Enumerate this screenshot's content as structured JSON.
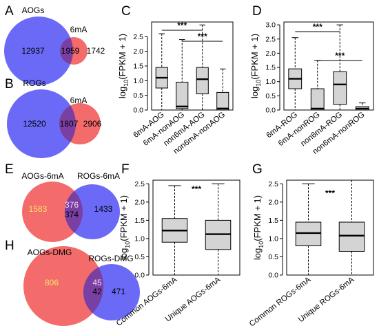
{
  "panel_labels": {
    "A": "A",
    "B": "B",
    "C": "C",
    "D": "D",
    "E": "E",
    "F": "F",
    "G": "G",
    "H": "H"
  },
  "colors": {
    "blue": "#6a6af7",
    "red": "#f36b6b",
    "overlap": "#7a3fa2",
    "box_fill": "#d4d4d4"
  },
  "venn": {
    "A": {
      "left_title": "AOGs",
      "right_title": "6mA",
      "left_only": "12937",
      "overlap": "1959",
      "right_only": "1742"
    },
    "B": {
      "left_title": "ROGs",
      "right_title": "6mA",
      "left_only": "12520",
      "overlap": "1807",
      "right_only": "2906"
    },
    "E": {
      "left_title": "AOGs-6mA",
      "right_title": "ROGs-6mA",
      "left_only": "1583",
      "overlap_top": "376",
      "overlap_bottom": "374",
      "right_only": "1433"
    },
    "H": {
      "left_title": "AOGs-DMG",
      "right_title": "ROGs-DMG",
      "left_only": "806",
      "overlap_top": "45",
      "overlap_bottom": "42",
      "right_only": "471"
    }
  },
  "chart_data": [
    {
      "panel": "C",
      "type": "boxplot",
      "ylabel_prefix": "log",
      "ylabel_sub": "10",
      "ylabel_suffix": "(FPKM + 1)",
      "ylim": [
        0,
        3.0
      ],
      "yticks": [
        "0.0",
        "0.5",
        "1.0",
        "1.5",
        "2.0",
        "2.5"
      ],
      "ytick_values": [
        0,
        0.5,
        1.0,
        1.5,
        2.0,
        2.5
      ],
      "categories": [
        "6mA-AOG",
        "6mA-nonAOG",
        "non6mA-AOG",
        "non6mA-nonAOG"
      ],
      "boxes": [
        {
          "whisker_low": 0.0,
          "q1": 0.75,
          "median": 1.1,
          "q3": 1.45,
          "whisker_high": 2.6
        },
        {
          "whisker_low": 0.0,
          "q1": 0.05,
          "median": 0.12,
          "q3": 0.95,
          "whisker_high": 2.4
        },
        {
          "whisker_low": 0.0,
          "q1": 0.55,
          "median": 1.05,
          "q3": 1.45,
          "whisker_high": 2.9
        },
        {
          "whisker_low": 0.0,
          "q1": 0.0,
          "median": 0.05,
          "q3": 0.6,
          "whisker_high": 1.4
        }
      ],
      "significance": [
        {
          "from": 0,
          "to": 2,
          "label": "***"
        },
        {
          "from": 1,
          "to": 3,
          "label": "***"
        }
      ]
    },
    {
      "panel": "D",
      "type": "boxplot",
      "ylabel_prefix": "log",
      "ylabel_sub": "10",
      "ylabel_suffix": "(FPKM + 1)",
      "ylim": [
        0,
        3.1
      ],
      "yticks": [
        "0.0",
        "0.5",
        "1.0",
        "1.5",
        "2.0",
        "2.5",
        "3.0"
      ],
      "ytick_values": [
        0,
        0.5,
        1.0,
        1.5,
        2.0,
        2.5,
        3.0
      ],
      "categories": [
        "6mA-ROG",
        "6mA-nonROG",
        "non6mA-ROG",
        "non6mA-nonROG"
      ],
      "boxes": [
        {
          "whisker_low": 0.0,
          "q1": 0.75,
          "median": 1.1,
          "q3": 1.45,
          "whisker_high": 2.55
        },
        {
          "whisker_low": 0.0,
          "q1": 0.0,
          "median": 0.05,
          "q3": 0.75,
          "whisker_high": 1.75
        },
        {
          "whisker_low": 0.0,
          "q1": 0.2,
          "median": 0.9,
          "q3": 1.35,
          "whisker_high": 3.0
        },
        {
          "whisker_low": 0.0,
          "q1": 0.0,
          "median": 0.05,
          "q3": 0.12,
          "whisker_high": 0.25
        }
      ],
      "significance": [
        {
          "from": 0,
          "to": 2,
          "label": "***"
        },
        {
          "from": 1,
          "to": 3,
          "label": "***"
        }
      ]
    },
    {
      "panel": "F",
      "type": "boxplot",
      "ylabel_prefix": "log",
      "ylabel_sub": "10",
      "ylabel_suffix": "(FPKM + 1)",
      "ylim": [
        0,
        2.6
      ],
      "yticks": [
        "0.0",
        "0.5",
        "1.0",
        "1.5",
        "2.0",
        "2.5"
      ],
      "ytick_values": [
        0,
        0.5,
        1.0,
        1.5,
        2.0,
        2.5
      ],
      "categories": [
        "Common AOGs-6mA",
        "Unique AOGs-6mA"
      ],
      "boxes": [
        {
          "whisker_low": 0.0,
          "q1": 0.9,
          "median": 1.22,
          "q3": 1.55,
          "whisker_high": 2.45
        },
        {
          "whisker_low": 0.0,
          "q1": 0.7,
          "median": 1.12,
          "q3": 1.5,
          "whisker_high": 2.5
        }
      ],
      "significance_label": "***"
    },
    {
      "panel": "G",
      "type": "boxplot",
      "ylabel_prefix": "log",
      "ylabel_sub": "10",
      "ylabel_suffix": "(FPKM + 1)",
      "ylim": [
        0,
        2.6
      ],
      "yticks": [
        "0.0",
        "0.5",
        "1.0",
        "1.5",
        "2.0",
        "2.5"
      ],
      "ytick_values": [
        0,
        0.5,
        1.0,
        1.5,
        2.0,
        2.5
      ],
      "categories": [
        "Common ROGs-6mA",
        "Unique ROGs-6mA"
      ],
      "boxes": [
        {
          "whisker_low": 0.0,
          "q1": 0.8,
          "median": 1.15,
          "q3": 1.45,
          "whisker_high": 2.5
        },
        {
          "whisker_low": 0.0,
          "q1": 0.65,
          "median": 1.08,
          "q3": 1.45,
          "whisker_high": 2.6
        }
      ],
      "significance_label": "***"
    }
  ]
}
